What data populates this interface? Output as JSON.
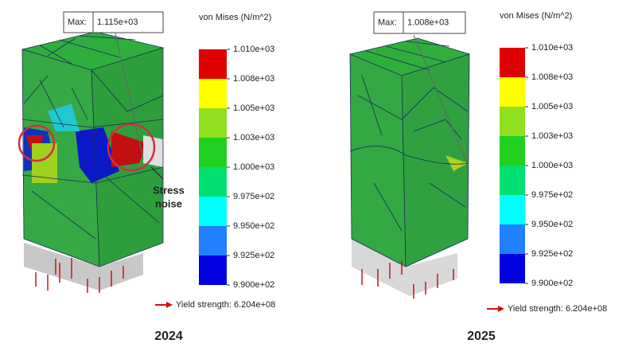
{
  "panels": [
    {
      "max_label": "Max:",
      "max_value": "1.115e+03",
      "legend_title": "von Mises (N/m^2)",
      "legend_ticks": [
        "1.010e+03",
        "1.008e+03",
        "1.005e+03",
        "1.003e+03",
        "1.000e+03",
        "9.975e+02",
        "9.950e+02",
        "9.925e+02",
        "9.900e+02"
      ],
      "yield_strength": "Yield strength: 6.204e+08",
      "year": "2024",
      "annotation": [
        "Stress",
        "noise"
      ]
    },
    {
      "max_label": "Max:",
      "max_value": "1.008e+03",
      "legend_title": "von Mises (N/m^2)",
      "legend_ticks": [
        "1.010e+03",
        "1.008e+03",
        "1.005e+03",
        "1.003e+03",
        "1.000e+03",
        "9.975e+02",
        "9.950e+02",
        "9.925e+02",
        "9.900e+02"
      ],
      "yield_strength": "Yield strength: 6.204e+08",
      "year": "2025"
    }
  ]
}
